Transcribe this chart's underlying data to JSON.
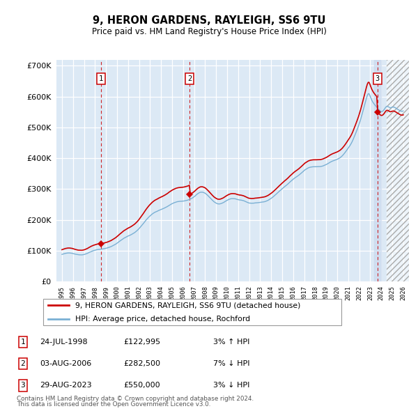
{
  "title": "9, HERON GARDENS, RAYLEIGH, SS6 9TU",
  "subtitle": "Price paid vs. HM Land Registry's House Price Index (HPI)",
  "legend_label_red": "9, HERON GARDENS, RAYLEIGH, SS6 9TU (detached house)",
  "legend_label_blue": "HPI: Average price, detached house, Rochford",
  "footer1": "Contains HM Land Registry data © Crown copyright and database right 2024.",
  "footer2": "This data is licensed under the Open Government Licence v3.0.",
  "sale_years": [
    1998.556,
    2006.586,
    2023.662
  ],
  "sale_prices": [
    122995,
    282500,
    550000
  ],
  "sale_labels": [
    "1",
    "2",
    "3"
  ],
  "table_rows": [
    [
      "1",
      "24-JUL-1998",
      "£122,995",
      "3% ↑ HPI"
    ],
    [
      "2",
      "03-AUG-2006",
      "£282,500",
      "7% ↓ HPI"
    ],
    [
      "3",
      "29-AUG-2023",
      "£550,000",
      "3% ↓ HPI"
    ]
  ],
  "red_color": "#cc0000",
  "blue_color": "#7ab0d4",
  "dashed_color": "#cc0000",
  "box_edge_color": "#cc0000",
  "bg_color": "#dce9f5",
  "hatch_start": 2024.5,
  "xlim": [
    1994.5,
    2026.5
  ],
  "ylim": [
    0,
    720000
  ],
  "yticks": [
    0,
    100000,
    200000,
    300000,
    400000,
    500000,
    600000,
    700000
  ],
  "xtick_years": [
    1995,
    1996,
    1997,
    1998,
    1999,
    2000,
    2001,
    2002,
    2003,
    2004,
    2005,
    2006,
    2007,
    2008,
    2009,
    2010,
    2011,
    2012,
    2013,
    2014,
    2015,
    2016,
    2017,
    2018,
    2019,
    2020,
    2021,
    2022,
    2023,
    2024,
    2025,
    2026
  ]
}
